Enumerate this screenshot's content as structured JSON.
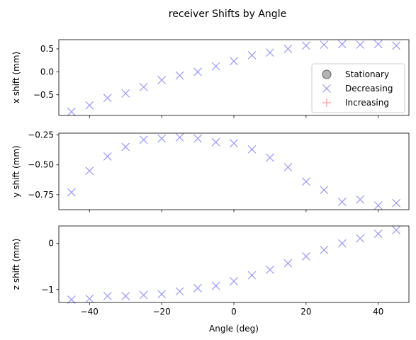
{
  "chart_data": {
    "type": "scatter",
    "title": "receiver Shifts by Angle",
    "xlabel": "Angle (deg)",
    "xlim": [
      -48.5,
      48.5
    ],
    "xticks": [
      -40,
      -20,
      0,
      20,
      40
    ],
    "xtick_labels": [
      "−40",
      "−20",
      "0",
      "20",
      "40"
    ],
    "legend": {
      "placement": "right",
      "entries": [
        {
          "name": "Stationary",
          "marker": "circle",
          "color": "#808080"
        },
        {
          "name": "Decreasing",
          "marker": "x",
          "color": "#9999ff"
        },
        {
          "name": "Increasing",
          "marker": "plus",
          "color": "#ff9999"
        }
      ]
    },
    "panels": [
      {
        "ylabel": "x shift (mm)",
        "ylim": [
          -0.95,
          0.7
        ],
        "yticks": [
          0.5,
          0.0,
          -0.5
        ],
        "ytick_labels": [
          "0.5",
          "0.0",
          "−0.5"
        ],
        "series": [
          {
            "name": "Decreasing",
            "x": [
              -45,
              -40,
              -35,
              -30,
              -25,
              -20,
              -15,
              -10,
              -5,
              0,
              5,
              10,
              15,
              20,
              25,
              30,
              35,
              40,
              45
            ],
            "y": [
              -0.87,
              -0.73,
              -0.57,
              -0.47,
              -0.33,
              -0.18,
              -0.08,
              0.0,
              0.12,
              0.23,
              0.36,
              0.42,
              0.5,
              0.57,
              0.59,
              0.6,
              0.59,
              0.6,
              0.57
            ]
          }
        ]
      },
      {
        "ylabel": "y shift (mm)",
        "ylim": [
          -0.875,
          -0.235
        ],
        "yticks": [
          -0.25,
          -0.5,
          -0.75
        ],
        "ytick_labels": [
          "−0.25",
          "−0.50",
          "−0.75"
        ],
        "series": [
          {
            "name": "Decreasing",
            "x": [
              -45,
              -40,
              -35,
              -30,
              -25,
              -20,
              -15,
              -10,
              -5,
              0,
              5,
              10,
              15,
              20,
              25,
              30,
              35,
              40,
              45
            ],
            "y": [
              -0.73,
              -0.55,
              -0.43,
              -0.35,
              -0.29,
              -0.28,
              -0.27,
              -0.28,
              -0.31,
              -0.32,
              -0.37,
              -0.44,
              -0.52,
              -0.64,
              -0.71,
              -0.81,
              -0.79,
              -0.84,
              -0.82
            ]
          }
        ]
      },
      {
        "ylabel": "z shift (mm)",
        "ylim": [
          -1.28,
          0.38
        ],
        "yticks": [
          0,
          -1
        ],
        "ytick_labels": [
          "0",
          "−1"
        ],
        "series": [
          {
            "name": "Decreasing",
            "x": [
              -45,
              -40,
              -35,
              -30,
              -25,
              -20,
              -15,
              -10,
              -5,
              0,
              5,
              10,
              15,
              20,
              25,
              30,
              35,
              40,
              45
            ],
            "y": [
              -1.22,
              -1.2,
              -1.14,
              -1.14,
              -1.12,
              -1.1,
              -1.04,
              -0.97,
              -0.92,
              -0.82,
              -0.69,
              -0.57,
              -0.43,
              -0.28,
              -0.14,
              0.0,
              0.11,
              0.21,
              0.29
            ]
          }
        ]
      }
    ]
  }
}
